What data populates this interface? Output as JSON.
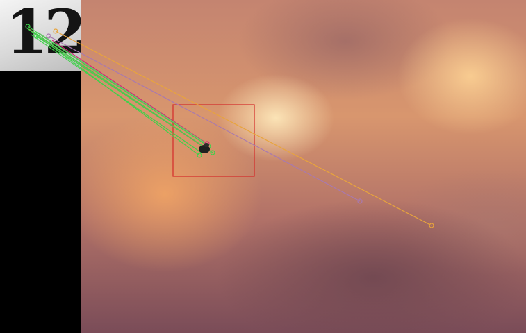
{
  "thumbnail": {
    "text": "12"
  },
  "colors": {
    "box": "#d42a2a",
    "green": "#3fd14a",
    "purple": "#a879b0",
    "orange": "#e8a43c",
    "magenta": "#d02a78"
  }
}
